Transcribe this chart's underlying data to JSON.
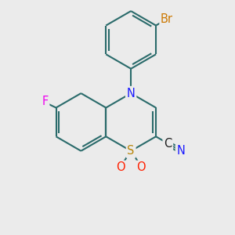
{
  "bg_color": "#ebebeb",
  "bond_color": "#2a6b6b",
  "bond_width": 1.5,
  "atom_colors": {
    "N": "#1a1aff",
    "S": "#b8860b",
    "O": "#ff2000",
    "F": "#ee00ee",
    "Br": "#cc7700",
    "C": "#1a1a1a",
    "N_cn": "#1a1aff"
  },
  "figsize": [
    3.0,
    3.0
  ],
  "dpi": 100,
  "xlim": [
    0,
    10
  ],
  "ylim": [
    0,
    10
  ]
}
